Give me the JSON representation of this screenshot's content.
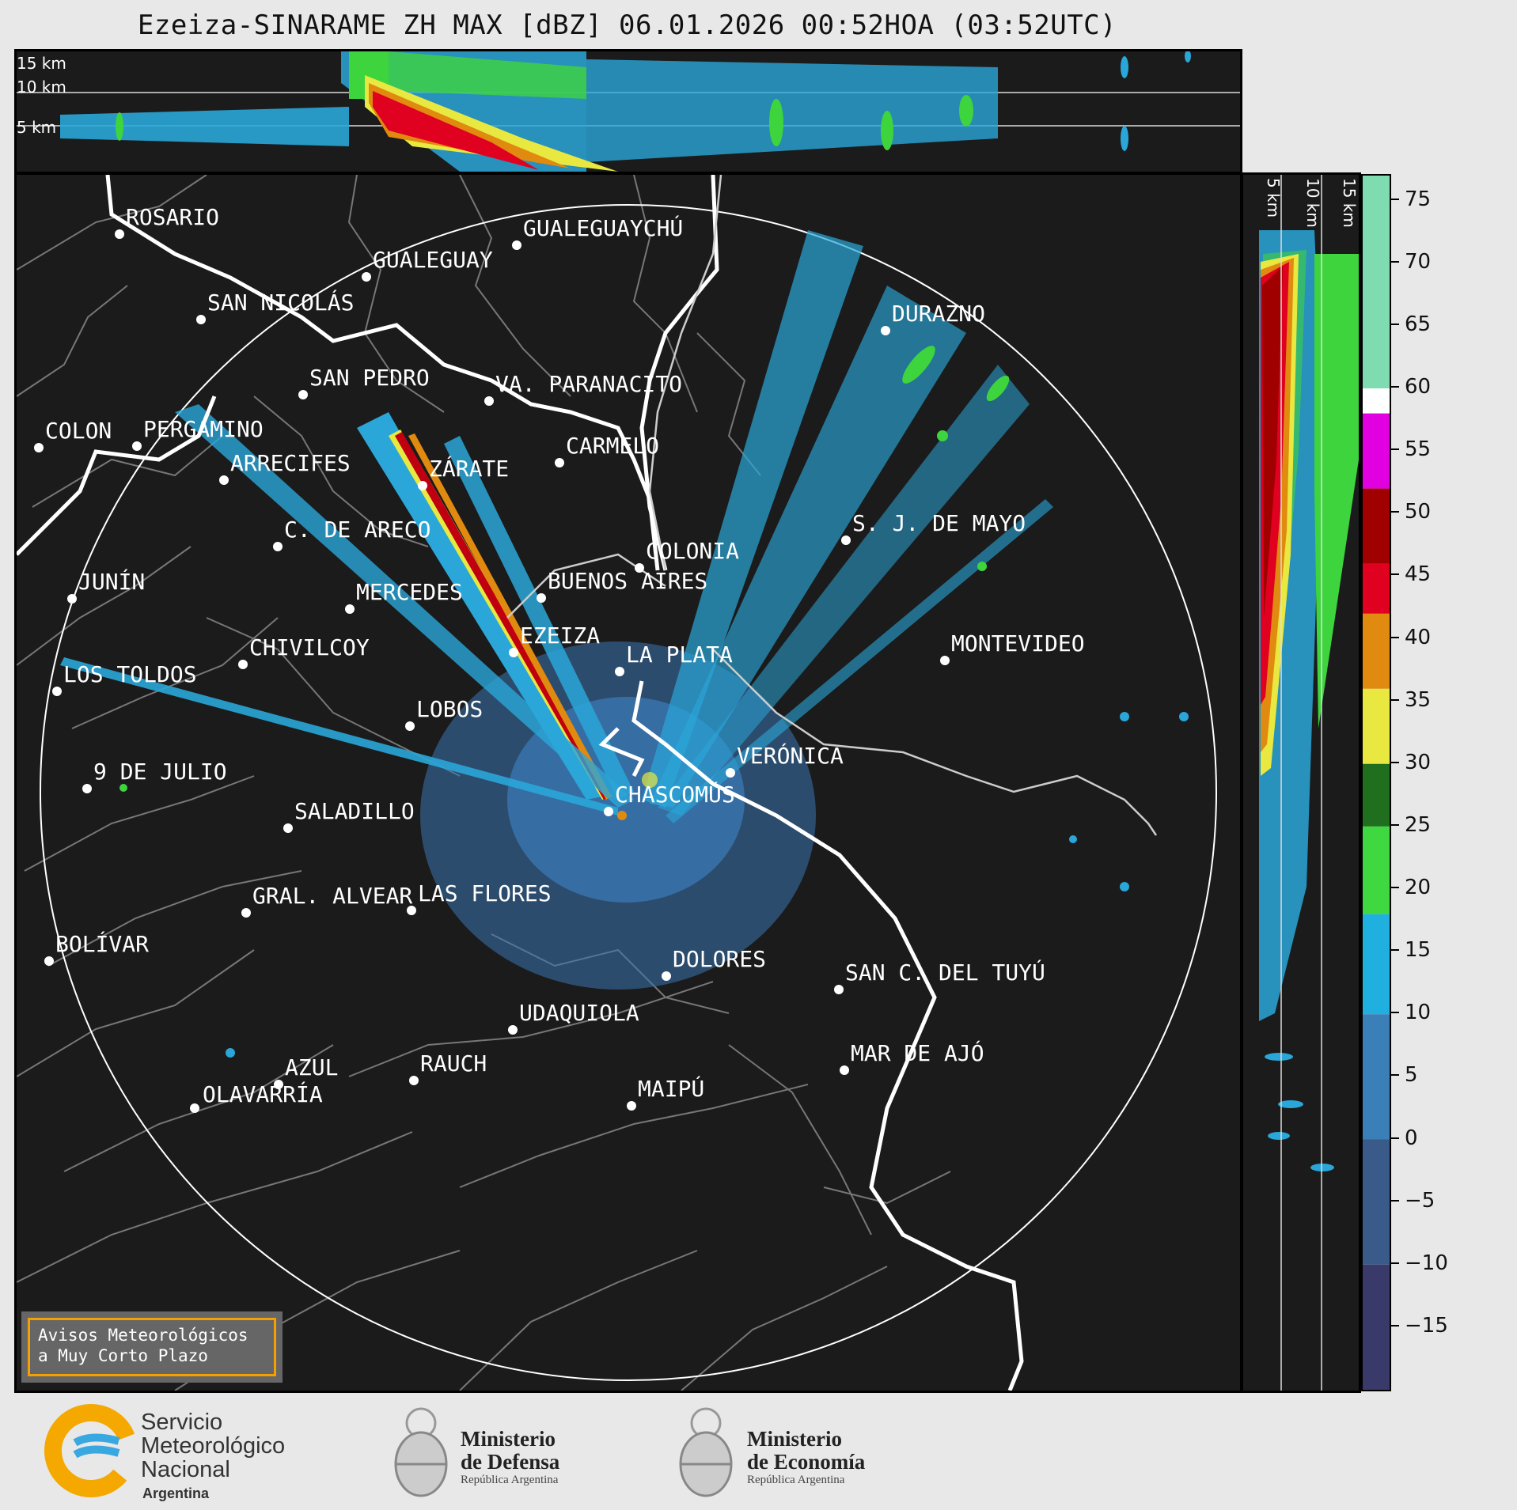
{
  "title": "Ezeiza-SINARAME ZH MAX [dBZ] 06.01.2026 00:52HOA (03:52UTC)",
  "top_section": {
    "height_labels": [
      "15 km",
      "10 km",
      "5 km"
    ]
  },
  "side_section": {
    "height_labels": [
      "5 km",
      "10 km",
      "15 km"
    ]
  },
  "colorbar": {
    "unit": "dBZ",
    "ticks": [
      "75",
      "70",
      "65",
      "60",
      "55",
      "50",
      "45",
      "40",
      "35",
      "30",
      "25",
      "20",
      "15",
      "10",
      "5",
      "0",
      "−5",
      "−10",
      "−15"
    ],
    "range": [
      -20,
      77
    ],
    "colors": {
      "high_green": "#7fdcb0",
      "white": "#ffffff",
      "magenta": "#e000e0",
      "red": "#e00020",
      "dark_red": "#a00000",
      "orange": "#e08a10",
      "yellow": "#e8e840",
      "dark_green": "#1f6f1f",
      "green": "#40d840",
      "cyan": "#20b0e0",
      "blue": "#3a7fb8",
      "slate": "#3a5a8a",
      "navy": "#3a3a6a"
    }
  },
  "map": {
    "cities": [
      "ROSARIO",
      "GUALEGUAYCHÚ",
      "GUALEGUAY",
      "SAN NICOLÁS",
      "DURAZNO",
      "SAN PEDRO",
      "VA. PARANACITO",
      "COLON",
      "PERGAMINO",
      "CARMELO",
      "ARRECIFES",
      "ZÁRATE",
      "S. J. DE MAYO",
      "C. DE ARECO",
      "COLONIA",
      "JUNÍN",
      "BUENOS AIRES",
      "MERCEDES",
      "EZEIZA",
      "MONTEVIDEO",
      "CHIVILCOY",
      "LA PLATA",
      "LOS TOLDOS",
      "LOBOS",
      "VERÓNICA",
      "9 DE JULIO",
      "CHASCOMÚS",
      "SALADILLO",
      "GRAL. ALVEAR",
      "LAS FLORES",
      "BOLÍVAR",
      "DOLORES",
      "SAN C. DEL TUYÚ",
      "UDAQUIOLA",
      "MAR DE AJÓ",
      "AZUL",
      "RAUCH",
      "MAIPÚ",
      "OLAVARRÍA"
    ],
    "radar_site": "EZEIZA"
  },
  "notice": {
    "line1": "Avisos Meteorológicos",
    "line2": "a Muy Corto Plazo"
  },
  "footer": {
    "smn": {
      "line1": "Servicio",
      "line2": "Meteorológico",
      "line3": "Nacional",
      "line4": "Argentina"
    },
    "ministry1": {
      "line1": "Ministerio",
      "line2": "de Defensa",
      "sub": "República Argentina"
    },
    "ministry2": {
      "line1": "Ministerio",
      "line2": "de Economía",
      "sub": "República Argentina"
    }
  }
}
